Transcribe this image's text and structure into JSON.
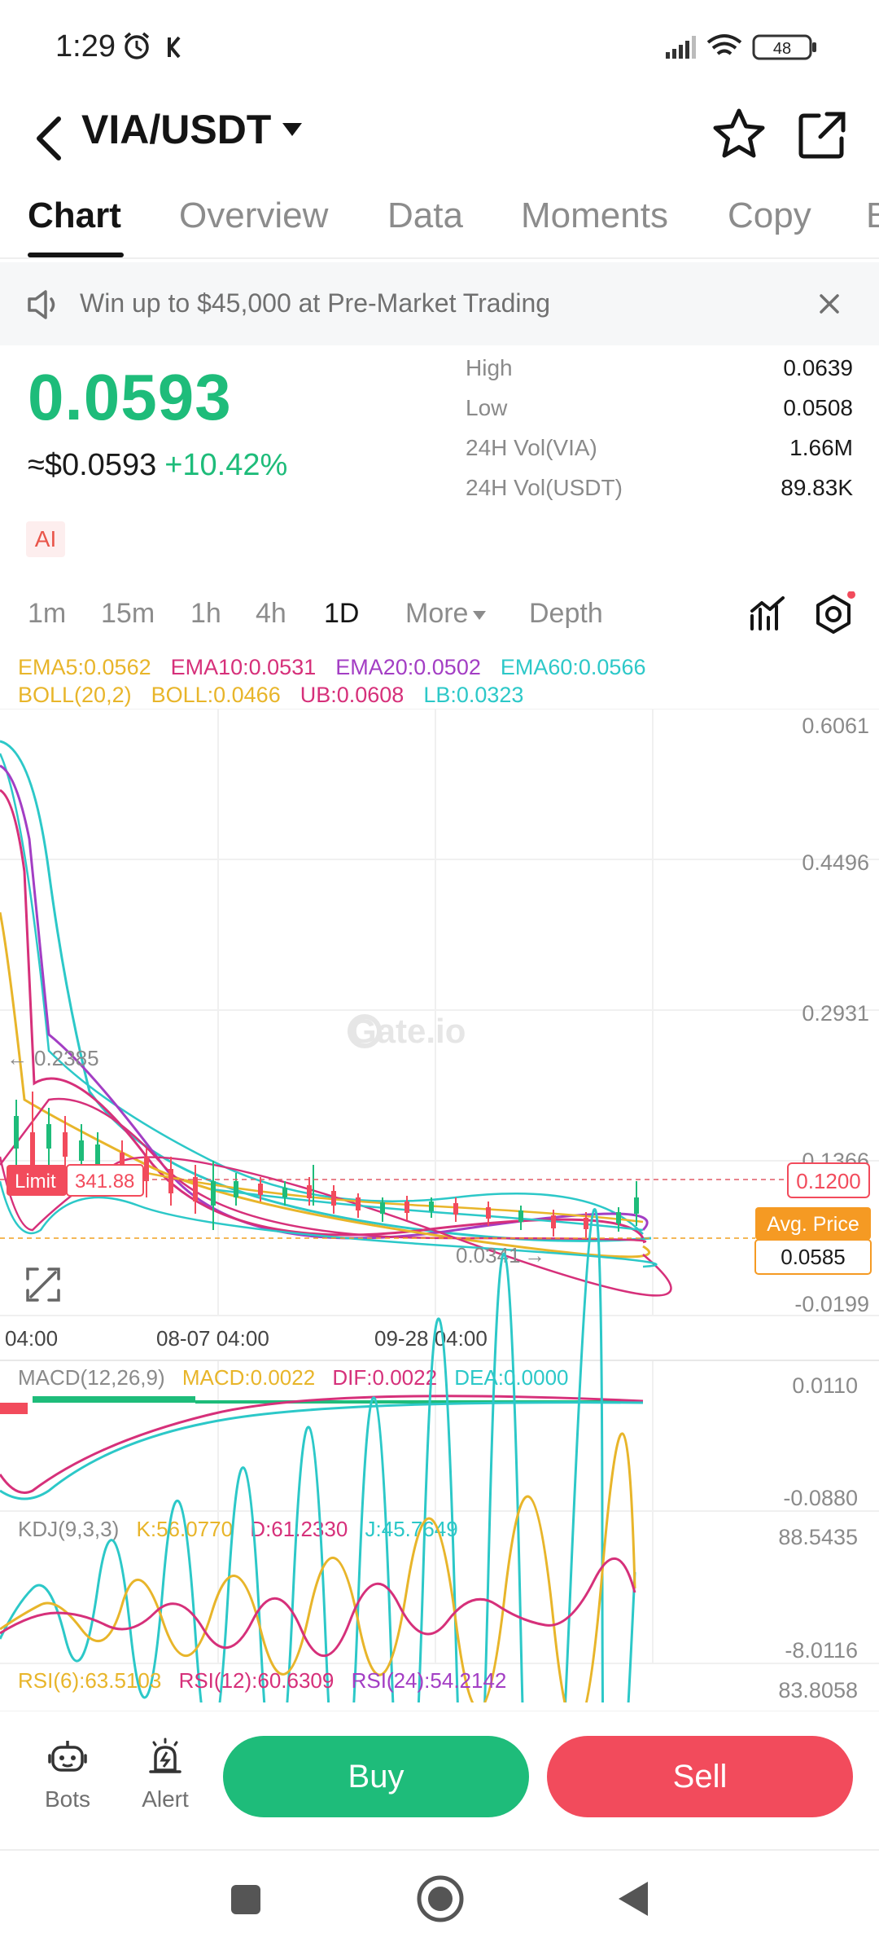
{
  "status_bar": {
    "time": "1:29",
    "battery": "48"
  },
  "header": {
    "pair": "VIA/USDT"
  },
  "tabs": [
    {
      "label": "Chart",
      "active": true
    },
    {
      "label": "Overview"
    },
    {
      "label": "Data"
    },
    {
      "label": "Moments"
    },
    {
      "label": "Copy"
    },
    {
      "label": "B"
    }
  ],
  "banner": {
    "text": "Win up to $45,000 at Pre-Market Trading"
  },
  "ticker": {
    "last_price": "0.0593",
    "usd_price": "≈$0.0593",
    "change": "+10.42%",
    "ai_label": "AI"
  },
  "stats": [
    {
      "label": "High",
      "value": "0.0639"
    },
    {
      "label": "Low",
      "value": "0.0508"
    },
    {
      "label": "24H Vol(VIA)",
      "value": "1.66M"
    },
    {
      "label": "24H Vol(USDT)",
      "value": "89.83K"
    }
  ],
  "intervals": {
    "items": [
      "1m",
      "15m",
      "1h",
      "4h",
      "1D"
    ],
    "active": "1D",
    "more": "More",
    "depth": "Depth"
  },
  "indicators": {
    "ema5": "EMA5:0.0562",
    "ema10": "EMA10:0.0531",
    "ema20": "EMA20:0.0502",
    "ema60": "EMA60:0.0566",
    "boll_name": "BOLL(20,2)",
    "boll": "BOLL:0.0466",
    "ub": "UB:0.0608",
    "lb": "LB:0.0323",
    "macd_name": "MACD(12,26,9)",
    "macd": "MACD:0.0022",
    "dif": "DIF:0.0022",
    "dea": "DEA:0.0000",
    "kdj_name": "KDJ(9,3,3)",
    "k": "K:56.0770",
    "d": "D:61.2330",
    "j": "J:45.7649",
    "rsi6": "RSI(6):63.5103",
    "rsi12": "RSI(12):60.6309",
    "rsi24": "RSI(24):54.2142"
  },
  "chart": {
    "y_labels": [
      "0.6061",
      "0.4496",
      "0.2931",
      "0.1366",
      "-0.0199"
    ],
    "x_labels": [
      "04:00",
      "08-07 04:00",
      "09-28 04:00"
    ],
    "high_marker": "0.2385",
    "low_marker": "0.0341",
    "limit_label": "Limit",
    "limit_value": "341.88",
    "limit_price": "0.1200",
    "avg_label": "Avg. Price",
    "avg_value": "0.0585",
    "watermark": "Gate.io",
    "macd_labels": [
      "0.0110",
      "-0.0880"
    ],
    "kdj_labels": [
      "88.5435",
      "-8.0116"
    ],
    "rsi_label": "83.8058",
    "colors": {
      "up": "#1ebc7a",
      "down": "#f24b5c",
      "ema5": "#e8b52a",
      "ema10": "#d6307a",
      "ema20": "#a33ec4",
      "ema60": "#2cc8c8"
    }
  },
  "bottom": {
    "bots": "Bots",
    "alert": "Alert",
    "buy": "Buy",
    "sell": "Sell"
  }
}
